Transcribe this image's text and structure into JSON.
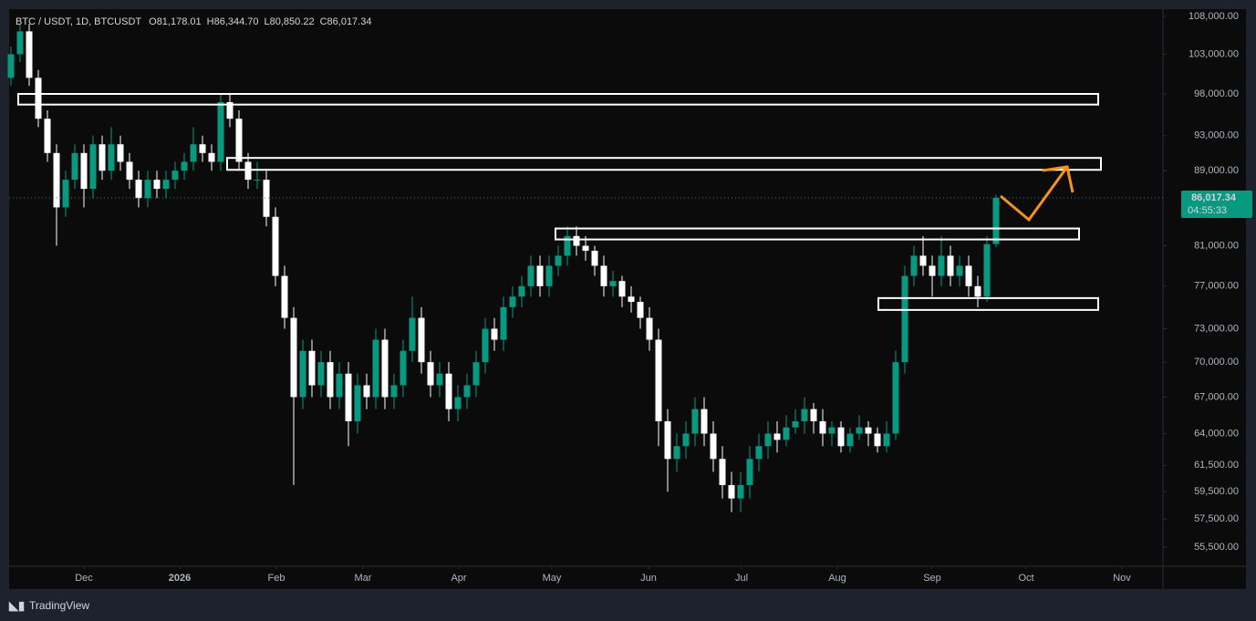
{
  "chart_data": {
    "type": "candlestick",
    "title": "BTC / USDT, 1D, BTCUSDT",
    "legend_values": [
      {
        "key": "O",
        "text": "81,178.01"
      },
      {
        "key": "H",
        "text": "86,344.70"
      },
      {
        "key": "L",
        "text": "80,850.22"
      },
      {
        "key": "C",
        "text": "86,017.34"
      }
    ],
    "up_color": "#089981",
    "down_color": "#ffffff",
    "log_scale": true,
    "ylim": [
      54250,
      109000
    ],
    "xlim": [
      -0.2,
      126.3
    ],
    "yticks": [
      {
        "value": 108000,
        "label": "108,000.00"
      },
      {
        "value": 103000,
        "label": "103,000.00"
      },
      {
        "value": 98000,
        "label": "98,000.00"
      },
      {
        "value": 93000,
        "label": "93,000.00"
      },
      {
        "value": 89000,
        "label": "89,000.00"
      },
      {
        "value": 81000,
        "label": "81,000.00"
      },
      {
        "value": 77000,
        "label": "77,000.00"
      },
      {
        "value": 73000,
        "label": "73,000.00"
      },
      {
        "value": 70000,
        "label": "70,000.00"
      },
      {
        "value": 67000,
        "label": "67,000.00"
      },
      {
        "value": 64000,
        "label": "64,000.00"
      },
      {
        "value": 61500,
        "label": "61,500.00"
      },
      {
        "value": 59500,
        "label": "59,500.00"
      },
      {
        "value": 57500,
        "label": "57,500.00"
      },
      {
        "value": 55500,
        "label": "55,500.00"
      }
    ],
    "xticks": [
      {
        "value": 8.0,
        "label": "Dec"
      },
      {
        "value": 18.5,
        "label": "2026"
      },
      {
        "value": 29.1,
        "label": "Feb"
      },
      {
        "value": 38.6,
        "label": "Mar"
      },
      {
        "value": 49.1,
        "label": "Apr"
      },
      {
        "value": 59.3,
        "label": "May"
      },
      {
        "value": 69.9,
        "label": "Jun"
      },
      {
        "value": 80.1,
        "label": "Jul"
      },
      {
        "value": 90.6,
        "label": "Aug"
      },
      {
        "value": 101.0,
        "label": "Sep"
      },
      {
        "value": 111.3,
        "label": "Oct"
      },
      {
        "value": 121.8,
        "label": "Nov"
      }
    ],
    "last_price": {
      "value": 86017.34,
      "label": "86,017.34"
    },
    "countdown": "04:55:33",
    "zones": [
      {
        "xlim": [
          0.8,
          119.2
        ],
        "ylim": [
          96700,
          98000
        ]
      },
      {
        "xlim": [
          23.7,
          119.5
        ],
        "ylim": [
          89100,
          90440
        ]
      },
      {
        "xlim": [
          59.7,
          117.1
        ],
        "ylim": [
          81650,
          82780
        ]
      },
      {
        "xlim": [
          95.1,
          119.2
        ],
        "ylim": [
          74740,
          75860
        ]
      }
    ],
    "ohlc": [
      [
        100000,
        104000,
        99000,
        103000
      ],
      [
        103000,
        107000,
        102000,
        106000
      ],
      [
        106000,
        107000,
        99000,
        100000
      ],
      [
        100000,
        101000,
        94000,
        95000
      ],
      [
        95000,
        96000,
        90000,
        91000
      ],
      [
        91000,
        92000,
        81000,
        85000
      ],
      [
        85000,
        89000,
        84000,
        88000
      ],
      [
        88000,
        92000,
        87000,
        91000
      ],
      [
        91000,
        92000,
        85000,
        87000
      ],
      [
        87000,
        93000,
        86000,
        92000
      ],
      [
        92000,
        93000,
        88000,
        89000
      ],
      [
        89000,
        94000,
        88000,
        92000
      ],
      [
        92000,
        93000,
        89000,
        90000
      ],
      [
        90000,
        91000,
        87000,
        88000
      ],
      [
        88000,
        89000,
        85000,
        86000
      ],
      [
        86000,
        89000,
        85000,
        88000
      ],
      [
        88000,
        89000,
        86000,
        87000
      ],
      [
        87000,
        89000,
        86000,
        88000
      ],
      [
        88000,
        90000,
        87000,
        89000
      ],
      [
        89000,
        91000,
        88000,
        90000
      ],
      [
        90000,
        94000,
        89000,
        92000
      ],
      [
        92000,
        93000,
        90000,
        91000
      ],
      [
        91000,
        92000,
        89000,
        90000
      ],
      [
        90000,
        98000,
        89000,
        97000
      ],
      [
        97000,
        98000,
        94000,
        95000
      ],
      [
        95000,
        96000,
        89000,
        90000
      ],
      [
        90000,
        91000,
        87000,
        88000
      ],
      [
        88000,
        90000,
        87000,
        88000
      ],
      [
        88000,
        89000,
        83000,
        84000
      ],
      [
        84000,
        85000,
        77000,
        78000
      ],
      [
        78000,
        79000,
        73000,
        74000
      ],
      [
        74000,
        75000,
        60000,
        67000
      ],
      [
        67000,
        72000,
        66000,
        71000
      ],
      [
        71000,
        72000,
        67000,
        68000
      ],
      [
        68000,
        71000,
        67000,
        70000
      ],
      [
        70000,
        71000,
        66000,
        67000
      ],
      [
        67000,
        70000,
        66000,
        69000
      ],
      [
        69000,
        70000,
        63000,
        65000
      ],
      [
        65000,
        69000,
        64000,
        68000
      ],
      [
        68000,
        69000,
        66000,
        67000
      ],
      [
        67000,
        73000,
        66000,
        72000
      ],
      [
        72000,
        73000,
        66000,
        67000
      ],
      [
        67000,
        69000,
        66000,
        68000
      ],
      [
        68000,
        72000,
        67000,
        71000
      ],
      [
        71000,
        76000,
        70000,
        74000
      ],
      [
        74000,
        75000,
        69000,
        70000
      ],
      [
        70000,
        71000,
        67000,
        68000
      ],
      [
        68000,
        70000,
        67000,
        69000
      ],
      [
        69000,
        70000,
        65000,
        66000
      ],
      [
        66000,
        68000,
        65000,
        67000
      ],
      [
        67000,
        69000,
        66000,
        68000
      ],
      [
        68000,
        71000,
        67000,
        70000
      ],
      [
        70000,
        74000,
        69000,
        73000
      ],
      [
        73000,
        74000,
        71000,
        72000
      ],
      [
        72000,
        76000,
        71000,
        75000
      ],
      [
        75000,
        77000,
        74000,
        76000
      ],
      [
        76000,
        78000,
        75000,
        77000
      ],
      [
        77000,
        80000,
        76000,
        79000
      ],
      [
        79000,
        80000,
        76000,
        77000
      ],
      [
        77000,
        80000,
        76000,
        79000
      ],
      [
        79000,
        81000,
        78000,
        80000
      ],
      [
        80000,
        83000,
        79000,
        82000
      ],
      [
        82000,
        83000,
        80000,
        81000
      ],
      [
        81000,
        82000,
        79500,
        80500
      ],
      [
        80500,
        81000,
        78000,
        79000
      ],
      [
        79000,
        80000,
        76000,
        77000
      ],
      [
        77000,
        78500,
        76000,
        77500
      ],
      [
        77500,
        78000,
        75000,
        76000
      ],
      [
        76000,
        77000,
        74500,
        75500
      ],
      [
        75500,
        76000,
        73000,
        74000
      ],
      [
        74000,
        75000,
        71000,
        72000
      ],
      [
        72000,
        73000,
        63000,
        65000
      ],
      [
        65000,
        66000,
        59500,
        62000
      ],
      [
        62000,
        64000,
        61000,
        63000
      ],
      [
        63000,
        65000,
        62000,
        64000
      ],
      [
        64000,
        67000,
        63000,
        66000
      ],
      [
        66000,
        67000,
        63000,
        64000
      ],
      [
        64000,
        65000,
        61000,
        62000
      ],
      [
        62000,
        63000,
        59000,
        60000
      ],
      [
        60000,
        61000,
        58000,
        59000
      ],
      [
        59000,
        61000,
        58000,
        60000
      ],
      [
        60000,
        63000,
        59000,
        62000
      ],
      [
        62000,
        64000,
        61000,
        63000
      ],
      [
        63000,
        65000,
        62000,
        64000
      ],
      [
        64000,
        65000,
        62500,
        63500
      ],
      [
        63500,
        65500,
        63000,
        64500
      ],
      [
        64500,
        66000,
        64000,
        65000
      ],
      [
        65000,
        67000,
        64000,
        66000
      ],
      [
        66000,
        66500,
        64000,
        65000
      ],
      [
        65000,
        66000,
        63000,
        64000
      ],
      [
        64000,
        65000,
        63000,
        64500
      ],
      [
        64500,
        65000,
        62500,
        63000
      ],
      [
        63000,
        64500,
        62500,
        64000
      ],
      [
        64000,
        65500,
        63500,
        64500
      ],
      [
        64500,
        65000,
        63000,
        64000
      ],
      [
        64000,
        64500,
        62500,
        63000
      ],
      [
        63000,
        65000,
        62500,
        64000
      ],
      [
        64000,
        71000,
        63500,
        70000
      ],
      [
        70000,
        79000,
        69000,
        78000
      ],
      [
        78000,
        81000,
        77000,
        80000
      ],
      [
        80000,
        82000,
        78000,
        79000
      ],
      [
        79000,
        80000,
        76000,
        78000
      ],
      [
        78000,
        82000,
        77000,
        80000
      ],
      [
        80000,
        81000,
        77000,
        78000
      ],
      [
        78000,
        80000,
        77000,
        79000
      ],
      [
        79000,
        80000,
        76000,
        77000
      ],
      [
        77000,
        78000,
        75000,
        76000
      ],
      [
        76000,
        82000,
        75500,
        81178.01
      ],
      [
        81178.01,
        86344.7,
        80850.22,
        86017.34
      ]
    ]
  },
  "branding": "TradingView"
}
